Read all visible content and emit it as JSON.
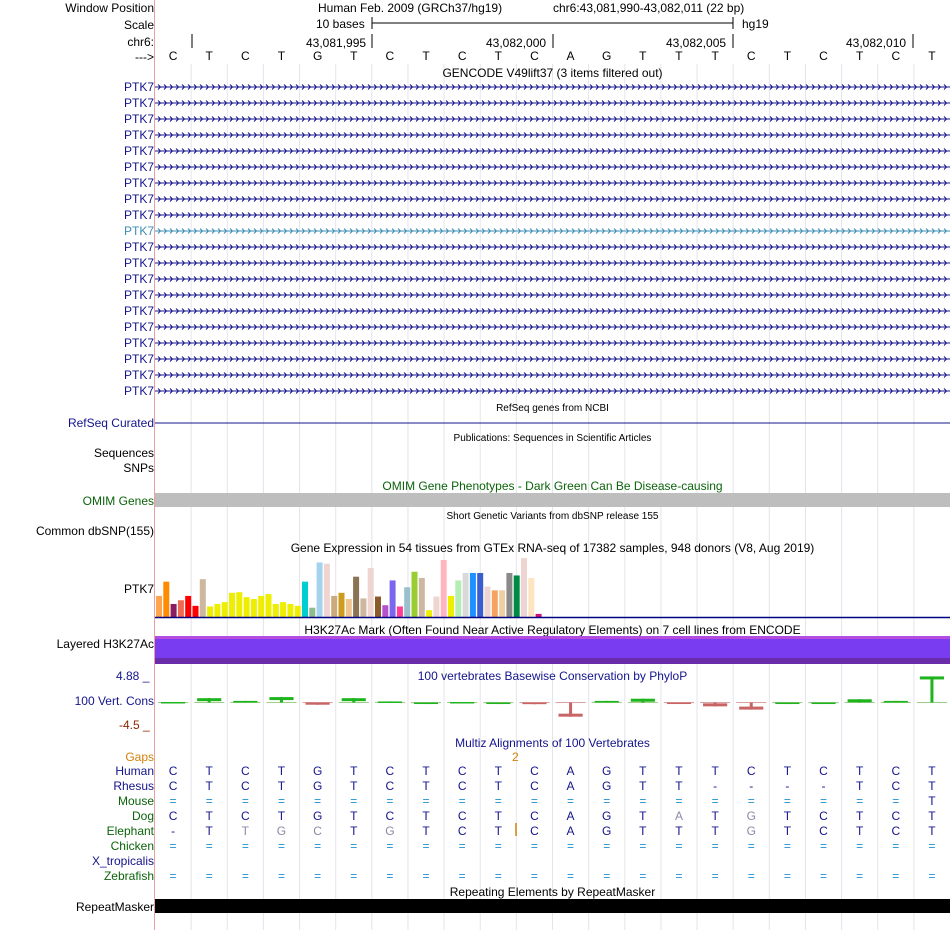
{
  "header": {
    "window_position_label": "Window Position",
    "scale_label": "Scale",
    "chrom_label": "chr6:",
    "strand_label": "--->",
    "assembly_title": "Human Feb. 2009 (GRCh37/hg19)",
    "position": "chr6:43,081,990-43,082,011 (22 bp)",
    "scale_text": "10 bases",
    "db": "hg19",
    "coords": [
      "43,081,995",
      "43,082,000",
      "43,082,005",
      "43,082,010"
    ]
  },
  "sequence": [
    "C",
    "T",
    "C",
    "T",
    "G",
    "T",
    "C",
    "T",
    "C",
    "T",
    "C",
    "A",
    "G",
    "T",
    "T",
    "T",
    "C",
    "T",
    "C",
    "T",
    "C",
    "T"
  ],
  "gencode": {
    "title": "GENCODE V49lift37 (3 items filtered out)",
    "gene_labels": [
      "PTK7",
      "PTK7",
      "PTK7",
      "PTK7",
      "PTK7",
      "PTK7",
      "PTK7",
      "PTK7",
      "PTK7",
      "PTK7",
      "PTK7",
      "PTK7",
      "PTK7",
      "PTK7",
      "PTK7",
      "PTK7",
      "PTK7",
      "PTK7",
      "PTK7",
      "PTK7"
    ],
    "highlight_index": 9,
    "colors": {
      "gene": "#14148c",
      "highlight": "#3c8cb4"
    }
  },
  "refseq": {
    "title": "RefSeq genes from NCBI",
    "label": "RefSeq Curated",
    "color": "#14148c"
  },
  "publications": {
    "title": "Publications: Sequences in Scientific Articles",
    "label1": "Sequences",
    "label2": "SNPs"
  },
  "omim": {
    "title": "OMIM Gene Phenotypes - Dark Green Can Be Disease-causing",
    "label": "OMIM Genes",
    "color": "#0a640a"
  },
  "dbsnp": {
    "title": "Short Genetic Variants from dbSNP release 155",
    "label": "Common dbSNP(155)"
  },
  "gtex": {
    "title": "Gene Expression in 54 tissues from GTEx RNA-seq of 17382 samples, 948 donors (V8, Aug 2019)",
    "label": "PTK7",
    "bars": [
      {
        "v": 0.34,
        "c": "#ffa54f"
      },
      {
        "v": 0.57,
        "c": "#ff8c00"
      },
      {
        "v": 0.21,
        "c": "#8b1c62"
      },
      {
        "v": 0.27,
        "c": "#ee6a50"
      },
      {
        "v": 0.34,
        "c": "#ff0000"
      },
      {
        "v": 0.18,
        "c": "#ff0000"
      },
      {
        "v": 0.61,
        "c": "#cdb79e"
      },
      {
        "v": 0.17,
        "c": "#eeee00"
      },
      {
        "v": 0.21,
        "c": "#eeee00"
      },
      {
        "v": 0.24,
        "c": "#eeee00"
      },
      {
        "v": 0.39,
        "c": "#eeee00"
      },
      {
        "v": 0.4,
        "c": "#eeee00"
      },
      {
        "v": 0.32,
        "c": "#eeee00"
      },
      {
        "v": 0.29,
        "c": "#eeee00"
      },
      {
        "v": 0.34,
        "c": "#eeee00"
      },
      {
        "v": 0.37,
        "c": "#eeee00"
      },
      {
        "v": 0.21,
        "c": "#eeee00"
      },
      {
        "v": 0.24,
        "c": "#eeee00"
      },
      {
        "v": 0.21,
        "c": "#eeee00"
      },
      {
        "v": 0.18,
        "c": "#eeee00"
      },
      {
        "v": 0.57,
        "c": "#00ced1"
      },
      {
        "v": 0.15,
        "c": "#8fbc8f"
      },
      {
        "v": 0.88,
        "c": "#a4d3ee"
      },
      {
        "v": 0.86,
        "c": "#eed5d2"
      },
      {
        "v": 0.34,
        "c": "#cdaa7d"
      },
      {
        "v": 0.39,
        "c": "#cd9b1d"
      },
      {
        "v": 0.29,
        "c": "#eec591"
      },
      {
        "v": 0.65,
        "c": "#8b7355"
      },
      {
        "v": 0.3,
        "c": "#cdb79e"
      },
      {
        "v": 0.79,
        "c": "#eed5d2"
      },
      {
        "v": 0.33,
        "c": "#8b5a2b"
      },
      {
        "v": 0.19,
        "c": "#b452cd"
      },
      {
        "v": 0.59,
        "c": "#7a67ee"
      },
      {
        "v": 0.17,
        "c": "#ff3e96"
      },
      {
        "v": 0.48,
        "c": "#9ac0cd"
      },
      {
        "v": 0.73,
        "c": "#9acd32"
      },
      {
        "v": 0.63,
        "c": "#cdb79e"
      },
      {
        "v": 0.11,
        "c": "#eeee00"
      },
      {
        "v": 0.33,
        "c": "#eed5d2"
      },
      {
        "v": 0.92,
        "c": "#ffb6c1"
      },
      {
        "v": 0.34,
        "c": "#eeee00"
      },
      {
        "v": 0.59,
        "c": "#b4eeb4"
      },
      {
        "v": 0.71,
        "c": "#d9d9d9"
      },
      {
        "v": 0.71,
        "c": "#1e90ff"
      },
      {
        "v": 0.71,
        "c": "#3a5fcd"
      },
      {
        "v": 0.49,
        "c": "#eed5d2"
      },
      {
        "v": 0.43,
        "c": "#f4a460"
      },
      {
        "v": 0.43,
        "c": "#eecfa1"
      },
      {
        "v": 0.71,
        "c": "#8b8989"
      },
      {
        "v": 0.67,
        "c": "#008b45"
      },
      {
        "v": 0.95,
        "c": "#eed5d2"
      },
      {
        "v": 0.63,
        "c": "#ffe4c4"
      },
      {
        "v": 0.05,
        "c": "#cd1076"
      }
    ]
  },
  "h3k27ac": {
    "title": "H3K27Ac Mark (Often Found Near Active Regulatory Elements) on 7 cell lines from ENCODE",
    "label": "Layered H3K27Ac"
  },
  "phylop": {
    "title": "100 vertebrates Basewise Conservation by PhyloP",
    "label": "100 Vert. Cons",
    "max_label": "4.88 _",
    "min_label": "-4.5 _",
    "ylim": [
      -4.5,
      4.88
    ],
    "values": [
      0.1,
      0.8,
      0.3,
      1.0,
      -0.4,
      0.8,
      0.2,
      0.0,
      0.1,
      0.0,
      -0.3,
      -2.6,
      0.3,
      0.7,
      -0.1,
      -0.7,
      -1.3,
      0.0,
      0.0,
      0.6,
      0.3,
      4.8
    ]
  },
  "multiz": {
    "title": "Multiz Alignments of 100 Vertebrates",
    "gaps_label": "Gaps",
    "gap_count": "2",
    "rows": [
      {
        "species": "Human",
        "bases": [
          "C",
          "T",
          "C",
          "T",
          "G",
          "T",
          "C",
          "T",
          "C",
          "T",
          "C",
          "A",
          "G",
          "T",
          "T",
          "T",
          "C",
          "T",
          "C",
          "T",
          "C",
          "T"
        ]
      },
      {
        "species": "Rhesus",
        "bases": [
          "C",
          "T",
          "C",
          "T",
          "G",
          "T",
          "C",
          "T",
          "C",
          "T",
          "C",
          "A",
          "G",
          "T",
          "T",
          "-",
          "-",
          "-",
          "-",
          "T",
          "C",
          "T"
        ]
      },
      {
        "species": "Mouse",
        "bases": [
          "=",
          "=",
          "=",
          "=",
          "=",
          "=",
          "=",
          "=",
          "=",
          "=",
          "=",
          "=",
          "=",
          "=",
          "=",
          "=",
          "=",
          "=",
          "=",
          "=",
          "=",
          "T"
        ]
      },
      {
        "species": "Dog",
        "bases": [
          "C",
          "T",
          "C",
          "T",
          "G",
          "T",
          "C",
          "T",
          "C",
          "T",
          "C",
          "A",
          "G",
          "T",
          "A",
          "T",
          "G",
          "T",
          "C",
          "T",
          "C",
          "T"
        ]
      },
      {
        "species": "Elephant",
        "bases": [
          "-",
          "T",
          "T",
          "G",
          "C",
          "T",
          "G",
          "T",
          "C",
          "T",
          "C",
          "A",
          "G",
          "T",
          "T",
          "T",
          "G",
          "T",
          "C",
          "T",
          "C",
          "T"
        ]
      },
      {
        "species": "Chicken",
        "bases": [
          "=",
          "=",
          "=",
          "=",
          "=",
          "=",
          "=",
          "=",
          "=",
          "=",
          "=",
          "=",
          "=",
          "=",
          "=",
          "=",
          "=",
          "=",
          "=",
          "=",
          "=",
          "="
        ]
      },
      {
        "species": "X_tropicalis",
        "bases": [
          "",
          "",
          "",
          "",
          "",
          "",
          "",
          "",
          "",
          "",
          "",
          "",
          "",
          "",
          "",
          "",
          "",
          "",
          "",
          "",
          "",
          ""
        ]
      },
      {
        "species": "Zebrafish",
        "bases": [
          "=",
          "=",
          "=",
          "=",
          "=",
          "=",
          "=",
          "=",
          "=",
          "=",
          "=",
          "=",
          "=",
          "=",
          "=",
          "=",
          "=",
          "=",
          "=",
          "=",
          "=",
          "="
        ]
      }
    ],
    "colors": {
      "human": "#14148c",
      "primate": "#14148c",
      "mammal": "#0a640a",
      "other": "#14148c",
      "gaps": "#d2820a"
    }
  },
  "repeatmasker": {
    "title": "Repeating Elements by RepeatMasker",
    "label": "RepeatMasker"
  }
}
